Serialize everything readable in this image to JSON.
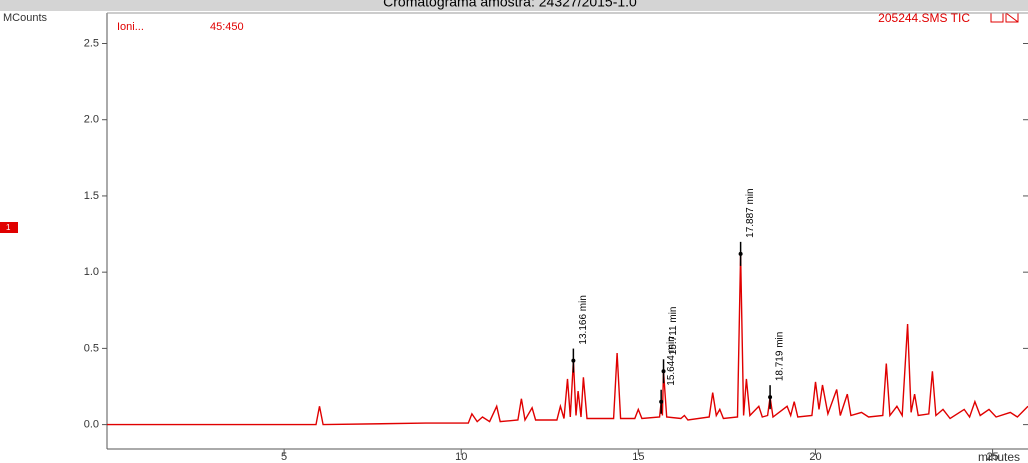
{
  "chart_data": {
    "type": "line",
    "title": "Cromatograma amostra: 24327/2015-1.0",
    "y_label": "MCounts",
    "x_label": "minutes",
    "trace_name": "205244.SMS TIC",
    "ion_label": "Ioni...",
    "ion_range": "45:450",
    "panel_marker": "1",
    "color": "#e00000",
    "xlim": [
      0,
      26
    ],
    "ylim": [
      -0.16,
      2.7
    ],
    "xticks": [
      5,
      10,
      15,
      20,
      25
    ],
    "yticks": [
      {
        "value": 0,
        "label": "0.0"
      },
      {
        "value": 0.5,
        "label": "0.5"
      },
      {
        "value": 1,
        "label": "1.0"
      },
      {
        "value": 1.5,
        "label": "1.5"
      },
      {
        "value": 2,
        "label": "2.0"
      },
      {
        "value": 2.5,
        "label": "2.5"
      }
    ],
    "x": [
      0,
      5.9,
      6.0,
      6.1,
      9.0,
      10.2,
      10.3,
      10.45,
      10.6,
      10.8,
      11.0,
      11.1,
      11.6,
      11.7,
      11.8,
      12.0,
      12.1,
      12.7,
      12.8,
      12.9,
      13.0,
      13.08,
      13.166,
      13.24,
      13.3,
      13.38,
      13.45,
      13.55,
      14.3,
      14.4,
      14.5,
      14.9,
      15.0,
      15.1,
      15.6,
      15.644,
      15.68,
      15.711,
      15.8,
      16.2,
      16.3,
      16.4,
      17.0,
      17.1,
      17.2,
      17.3,
      17.4,
      17.8,
      17.887,
      17.97,
      18.05,
      18.15,
      18.4,
      18.5,
      18.65,
      18.719,
      18.8,
      19.2,
      19.3,
      19.4,
      19.5,
      19.9,
      20.0,
      20.1,
      20.2,
      20.35,
      20.6,
      20.7,
      20.9,
      21.0,
      21.3,
      21.5,
      21.9,
      22.0,
      22.1,
      22.3,
      22.45,
      22.6,
      22.7,
      22.8,
      22.9,
      23.2,
      23.3,
      23.4,
      23.6,
      23.8,
      24.2,
      24.35,
      24.5,
      24.65,
      24.9,
      25.1,
      25.5,
      25.7,
      26.0
    ],
    "values": [
      0,
      0,
      0.12,
      0,
      0.01,
      0.01,
      0.07,
      0.02,
      0.05,
      0.02,
      0.12,
      0.02,
      0.03,
      0.17,
      0.03,
      0.11,
      0.03,
      0.03,
      0.12,
      0.04,
      0.3,
      0.05,
      0.42,
      0.06,
      0.22,
      0.05,
      0.31,
      0.04,
      0.04,
      0.47,
      0.04,
      0.04,
      0.1,
      0.04,
      0.05,
      0.15,
      0.06,
      0.35,
      0.05,
      0.04,
      0.06,
      0.03,
      0.05,
      0.21,
      0.06,
      0.1,
      0.04,
      0.05,
      1.12,
      0.06,
      0.3,
      0.06,
      0.12,
      0.05,
      0.06,
      0.18,
      0.05,
      0.12,
      0.06,
      0.15,
      0.05,
      0.06,
      0.28,
      0.1,
      0.26,
      0.07,
      0.23,
      0.06,
      0.2,
      0.06,
      0.08,
      0.05,
      0.06,
      0.4,
      0.06,
      0.12,
      0.06,
      0.66,
      0.08,
      0.2,
      0.06,
      0.07,
      0.35,
      0.06,
      0.1,
      0.04,
      0.1,
      0.05,
      0.15,
      0.06,
      0.1,
      0.05,
      0.08,
      0.05,
      0.12
    ],
    "annotations": [
      {
        "text": "13.166 min",
        "x": 13.166,
        "y": 0.42
      },
      {
        "text": "15.644 min",
        "x": 15.644,
        "y": 0.15
      },
      {
        "text": "15.711 min",
        "x": 15.711,
        "y": 0.35
      },
      {
        "text": "17.887 min",
        "x": 17.887,
        "y": 1.12
      },
      {
        "text": "18.719 min",
        "x": 18.719,
        "y": 0.18
      }
    ]
  }
}
